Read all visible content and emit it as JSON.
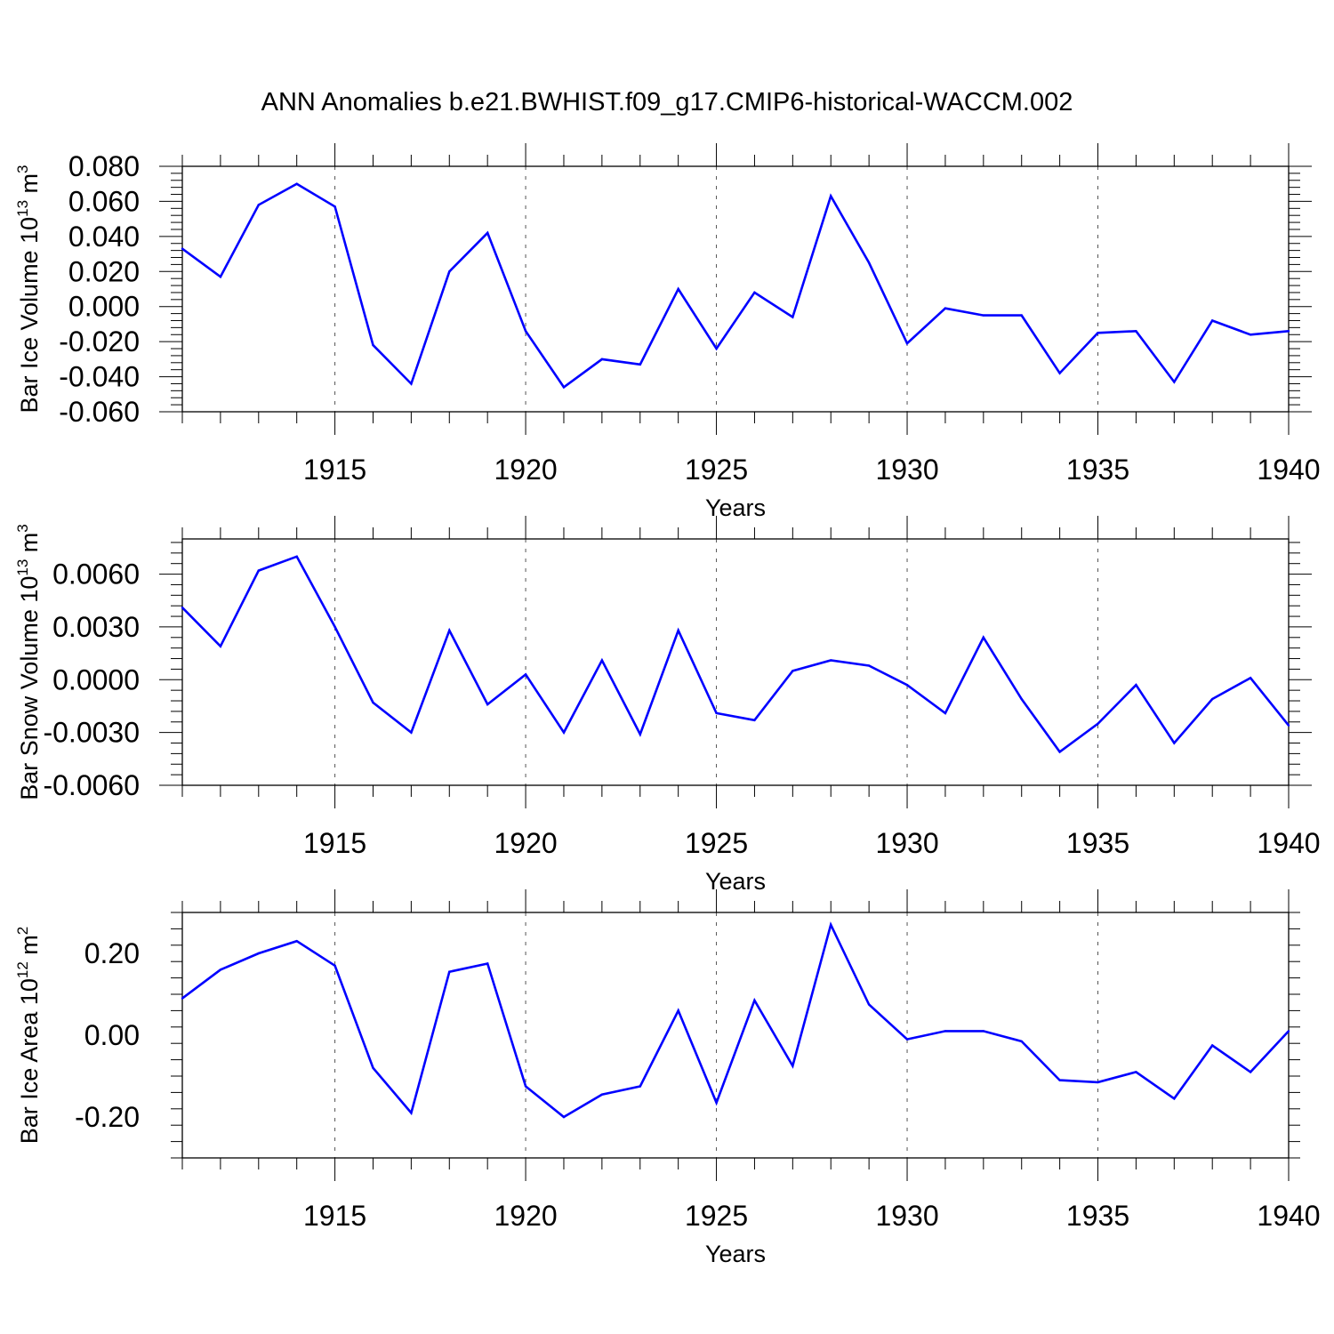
{
  "title": "ANN Anomalies b.e21.BWHIST.f09_g17.CMIP6-historical-WACCM.002",
  "colors": {
    "line": "#0000ff",
    "axis": "#000000",
    "grid": "#555555"
  },
  "chart_data": [
    {
      "type": "line",
      "ylabel": {
        "prefix": "Bar Ice Volume 10",
        "exponent": "13",
        "unit": " m",
        "unit_exponent": "3"
      },
      "xlabel": "Years",
      "xlim": [
        1911,
        1940
      ],
      "ylim": [
        -0.06,
        0.08
      ],
      "y_ticks": [
        "0.080",
        "0.060",
        "0.040",
        "0.020",
        "0.000",
        "-0.020",
        "-0.040",
        "-0.060"
      ],
      "y_tick_values": [
        0.08,
        0.06,
        0.04,
        0.02,
        0.0,
        -0.02,
        -0.04,
        -0.06
      ],
      "x_ticks": [
        "1915",
        "1920",
        "1925",
        "1930",
        "1935",
        "1940"
      ],
      "x_tick_values": [
        1915,
        1920,
        1925,
        1930,
        1935,
        1940
      ],
      "grid": "vertical dashed at major x ticks",
      "x": [
        1911,
        1912,
        1913,
        1914,
        1915,
        1916,
        1917,
        1918,
        1919,
        1920,
        1921,
        1922,
        1923,
        1924,
        1925,
        1926,
        1927,
        1928,
        1929,
        1930,
        1931,
        1932,
        1933,
        1934,
        1935,
        1936,
        1937,
        1938,
        1939,
        1940
      ],
      "values": [
        0.033,
        0.017,
        0.058,
        0.07,
        0.057,
        -0.022,
        -0.044,
        0.02,
        0.042,
        -0.014,
        -0.046,
        -0.03,
        -0.033,
        0.01,
        -0.024,
        0.008,
        -0.006,
        0.063,
        0.025,
        -0.021,
        -0.001,
        -0.005,
        -0.005,
        -0.038,
        -0.015,
        -0.014,
        -0.043,
        -0.008,
        -0.016,
        -0.014
      ]
    },
    {
      "type": "line",
      "ylabel": {
        "prefix": "Bar Snow Volume 10",
        "exponent": "13",
        "unit": " m",
        "unit_exponent": "3"
      },
      "xlabel": "Years",
      "xlim": [
        1911,
        1940
      ],
      "ylim": [
        -0.006,
        0.008
      ],
      "y_ticks": [
        "0.0060",
        "0.0030",
        "0.0000",
        "-0.0030",
        "-0.0060"
      ],
      "y_tick_values": [
        0.006,
        0.003,
        0.0,
        -0.003,
        -0.006
      ],
      "x_ticks": [
        "1915",
        "1920",
        "1925",
        "1930",
        "1935",
        "1940"
      ],
      "x_tick_values": [
        1915,
        1920,
        1925,
        1930,
        1935,
        1940
      ],
      "grid": "vertical dashed at major x ticks",
      "x": [
        1911,
        1912,
        1913,
        1914,
        1915,
        1916,
        1917,
        1918,
        1919,
        1920,
        1921,
        1922,
        1923,
        1924,
        1925,
        1926,
        1927,
        1928,
        1929,
        1930,
        1931,
        1932,
        1933,
        1934,
        1935,
        1936,
        1937,
        1938,
        1939,
        1940
      ],
      "values": [
        0.0041,
        0.0019,
        0.0062,
        0.007,
        0.003,
        -0.0013,
        -0.003,
        0.0028,
        -0.0014,
        0.0003,
        -0.003,
        0.0011,
        -0.0031,
        0.0028,
        -0.0019,
        -0.0023,
        0.0005,
        0.0011,
        0.0008,
        -0.0003,
        -0.0019,
        0.0024,
        -0.0011,
        -0.0041,
        -0.0025,
        -0.0003,
        -0.0036,
        -0.0011,
        0.0001,
        -0.0026
      ]
    },
    {
      "type": "line",
      "ylabel": {
        "prefix": "Bar Ice Area 10",
        "exponent": "12",
        "unit": " m",
        "unit_exponent": "2"
      },
      "xlabel": "Years",
      "xlim": [
        1911,
        1940
      ],
      "ylim": [
        -0.3,
        0.3
      ],
      "y_ticks": [
        "0.20",
        "0.00",
        "-0.20"
      ],
      "y_tick_values": [
        0.2,
        0.0,
        -0.2
      ],
      "x_ticks": [
        "1915",
        "1920",
        "1925",
        "1930",
        "1935",
        "1940"
      ],
      "x_tick_values": [
        1915,
        1920,
        1925,
        1930,
        1935,
        1940
      ],
      "grid": "vertical dashed at major x ticks",
      "x": [
        1911,
        1912,
        1913,
        1914,
        1915,
        1916,
        1917,
        1918,
        1919,
        1920,
        1921,
        1922,
        1923,
        1924,
        1925,
        1926,
        1927,
        1928,
        1929,
        1930,
        1931,
        1932,
        1933,
        1934,
        1935,
        1936,
        1937,
        1938,
        1939,
        1940
      ],
      "values": [
        0.09,
        0.16,
        0.2,
        0.23,
        0.17,
        -0.08,
        -0.19,
        0.155,
        0.175,
        -0.125,
        -0.2,
        -0.145,
        -0.125,
        0.06,
        -0.165,
        0.085,
        -0.075,
        0.27,
        0.075,
        -0.01,
        0.01,
        0.01,
        -0.015,
        -0.11,
        -0.115,
        -0.09,
        -0.155,
        -0.025,
        -0.09,
        0.01
      ]
    }
  ]
}
